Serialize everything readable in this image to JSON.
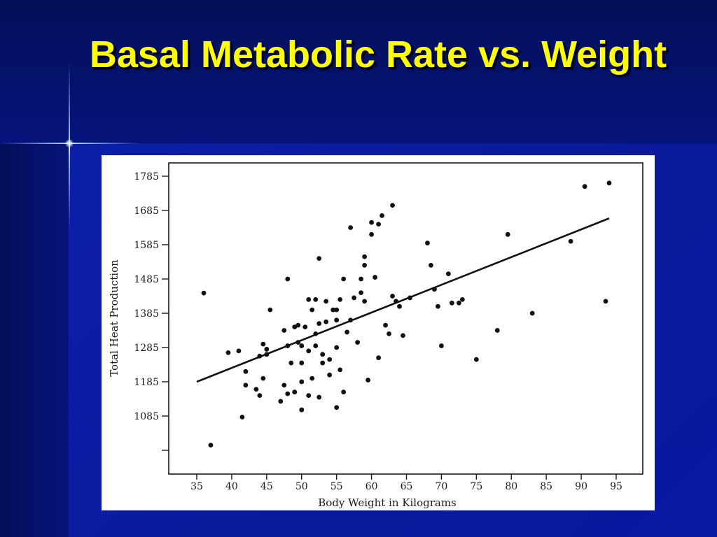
{
  "slide": {
    "title": "Basal Metabolic Rate vs. Weight"
  },
  "chart_data": {
    "type": "scatter",
    "title": "",
    "xlabel": "Body Weight in Kilograms",
    "ylabel": "Total Heat Production",
    "xlim": [
      35,
      95
    ],
    "ylim": [
      985,
      1785
    ],
    "x_ticks": [
      35,
      40,
      45,
      50,
      55,
      60,
      65,
      70,
      75,
      80,
      85,
      90,
      95
    ],
    "y_ticks": [
      1085,
      1185,
      1285,
      1385,
      1485,
      1585,
      1685,
      1785
    ],
    "y_tick_unlabeled": [
      985
    ],
    "grid": false,
    "series": [
      {
        "points": [
          [
            36.0,
            1444
          ],
          [
            37.0,
            1000
          ],
          [
            39.5,
            1270
          ],
          [
            41.0,
            1275
          ],
          [
            41.5,
            1082
          ],
          [
            42.0,
            1215
          ],
          [
            42.0,
            1175
          ],
          [
            43.5,
            1163
          ],
          [
            44.0,
            1145
          ],
          [
            44.0,
            1260
          ],
          [
            44.5,
            1195
          ],
          [
            44.5,
            1295
          ],
          [
            45.0,
            1280
          ],
          [
            45.0,
            1265
          ],
          [
            45.5,
            1395
          ],
          [
            47.0,
            1128
          ],
          [
            47.5,
            1335
          ],
          [
            47.5,
            1175
          ],
          [
            48.0,
            1290
          ],
          [
            48.0,
            1485
          ],
          [
            48.0,
            1150
          ],
          [
            48.5,
            1240
          ],
          [
            49.0,
            1345
          ],
          [
            49.0,
            1155
          ],
          [
            49.5,
            1300
          ],
          [
            49.5,
            1350
          ],
          [
            50.0,
            1290
          ],
          [
            50.0,
            1240
          ],
          [
            50.0,
            1185
          ],
          [
            50.0,
            1103
          ],
          [
            50.5,
            1345
          ],
          [
            51.0,
            1425
          ],
          [
            51.0,
            1275
          ],
          [
            51.0,
            1145
          ],
          [
            51.5,
            1395
          ],
          [
            51.5,
            1195
          ],
          [
            52.0,
            1425
          ],
          [
            52.0,
            1325
          ],
          [
            52.0,
            1290
          ],
          [
            52.5,
            1355
          ],
          [
            52.5,
            1545
          ],
          [
            52.5,
            1140
          ],
          [
            53.0,
            1265
          ],
          [
            53.0,
            1240
          ],
          [
            53.5,
            1420
          ],
          [
            53.5,
            1360
          ],
          [
            54.0,
            1250
          ],
          [
            54.0,
            1205
          ],
          [
            54.5,
            1395
          ],
          [
            55.0,
            1395
          ],
          [
            55.0,
            1365
          ],
          [
            55.0,
            1285
          ],
          [
            55.0,
            1110
          ],
          [
            55.5,
            1425
          ],
          [
            55.5,
            1220
          ],
          [
            56.0,
            1485
          ],
          [
            56.0,
            1155
          ],
          [
            56.5,
            1330
          ],
          [
            57.0,
            1635
          ],
          [
            57.0,
            1365
          ],
          [
            57.5,
            1430
          ],
          [
            58.0,
            1300
          ],
          [
            58.5,
            1445
          ],
          [
            58.5,
            1485
          ],
          [
            59.0,
            1420
          ],
          [
            59.0,
            1550
          ],
          [
            59.0,
            1525
          ],
          [
            59.5,
            1190
          ],
          [
            60.0,
            1615
          ],
          [
            60.0,
            1650
          ],
          [
            60.5,
            1490
          ],
          [
            61.0,
            1645
          ],
          [
            61.0,
            1255
          ],
          [
            61.5,
            1670
          ],
          [
            62.0,
            1350
          ],
          [
            62.5,
            1325
          ],
          [
            63.0,
            1700
          ],
          [
            63.0,
            1435
          ],
          [
            63.5,
            1420
          ],
          [
            64.0,
            1405
          ],
          [
            64.5,
            1320
          ],
          [
            65.5,
            1430
          ],
          [
            68.0,
            1590
          ],
          [
            68.5,
            1525
          ],
          [
            69.0,
            1455
          ],
          [
            69.5,
            1405
          ],
          [
            70.0,
            1290
          ],
          [
            71.0,
            1500
          ],
          [
            71.5,
            1415
          ],
          [
            72.5,
            1415
          ],
          [
            73.0,
            1425
          ],
          [
            75.0,
            1250
          ],
          [
            78.0,
            1335
          ],
          [
            79.5,
            1615
          ],
          [
            83.0,
            1385
          ],
          [
            88.5,
            1595
          ],
          [
            90.5,
            1755
          ],
          [
            93.5,
            1420
          ],
          [
            94.0,
            1765
          ]
        ]
      }
    ],
    "regression_line": {
      "x": [
        35.0,
        94.0
      ],
      "y": [
        1185,
        1662
      ]
    }
  }
}
